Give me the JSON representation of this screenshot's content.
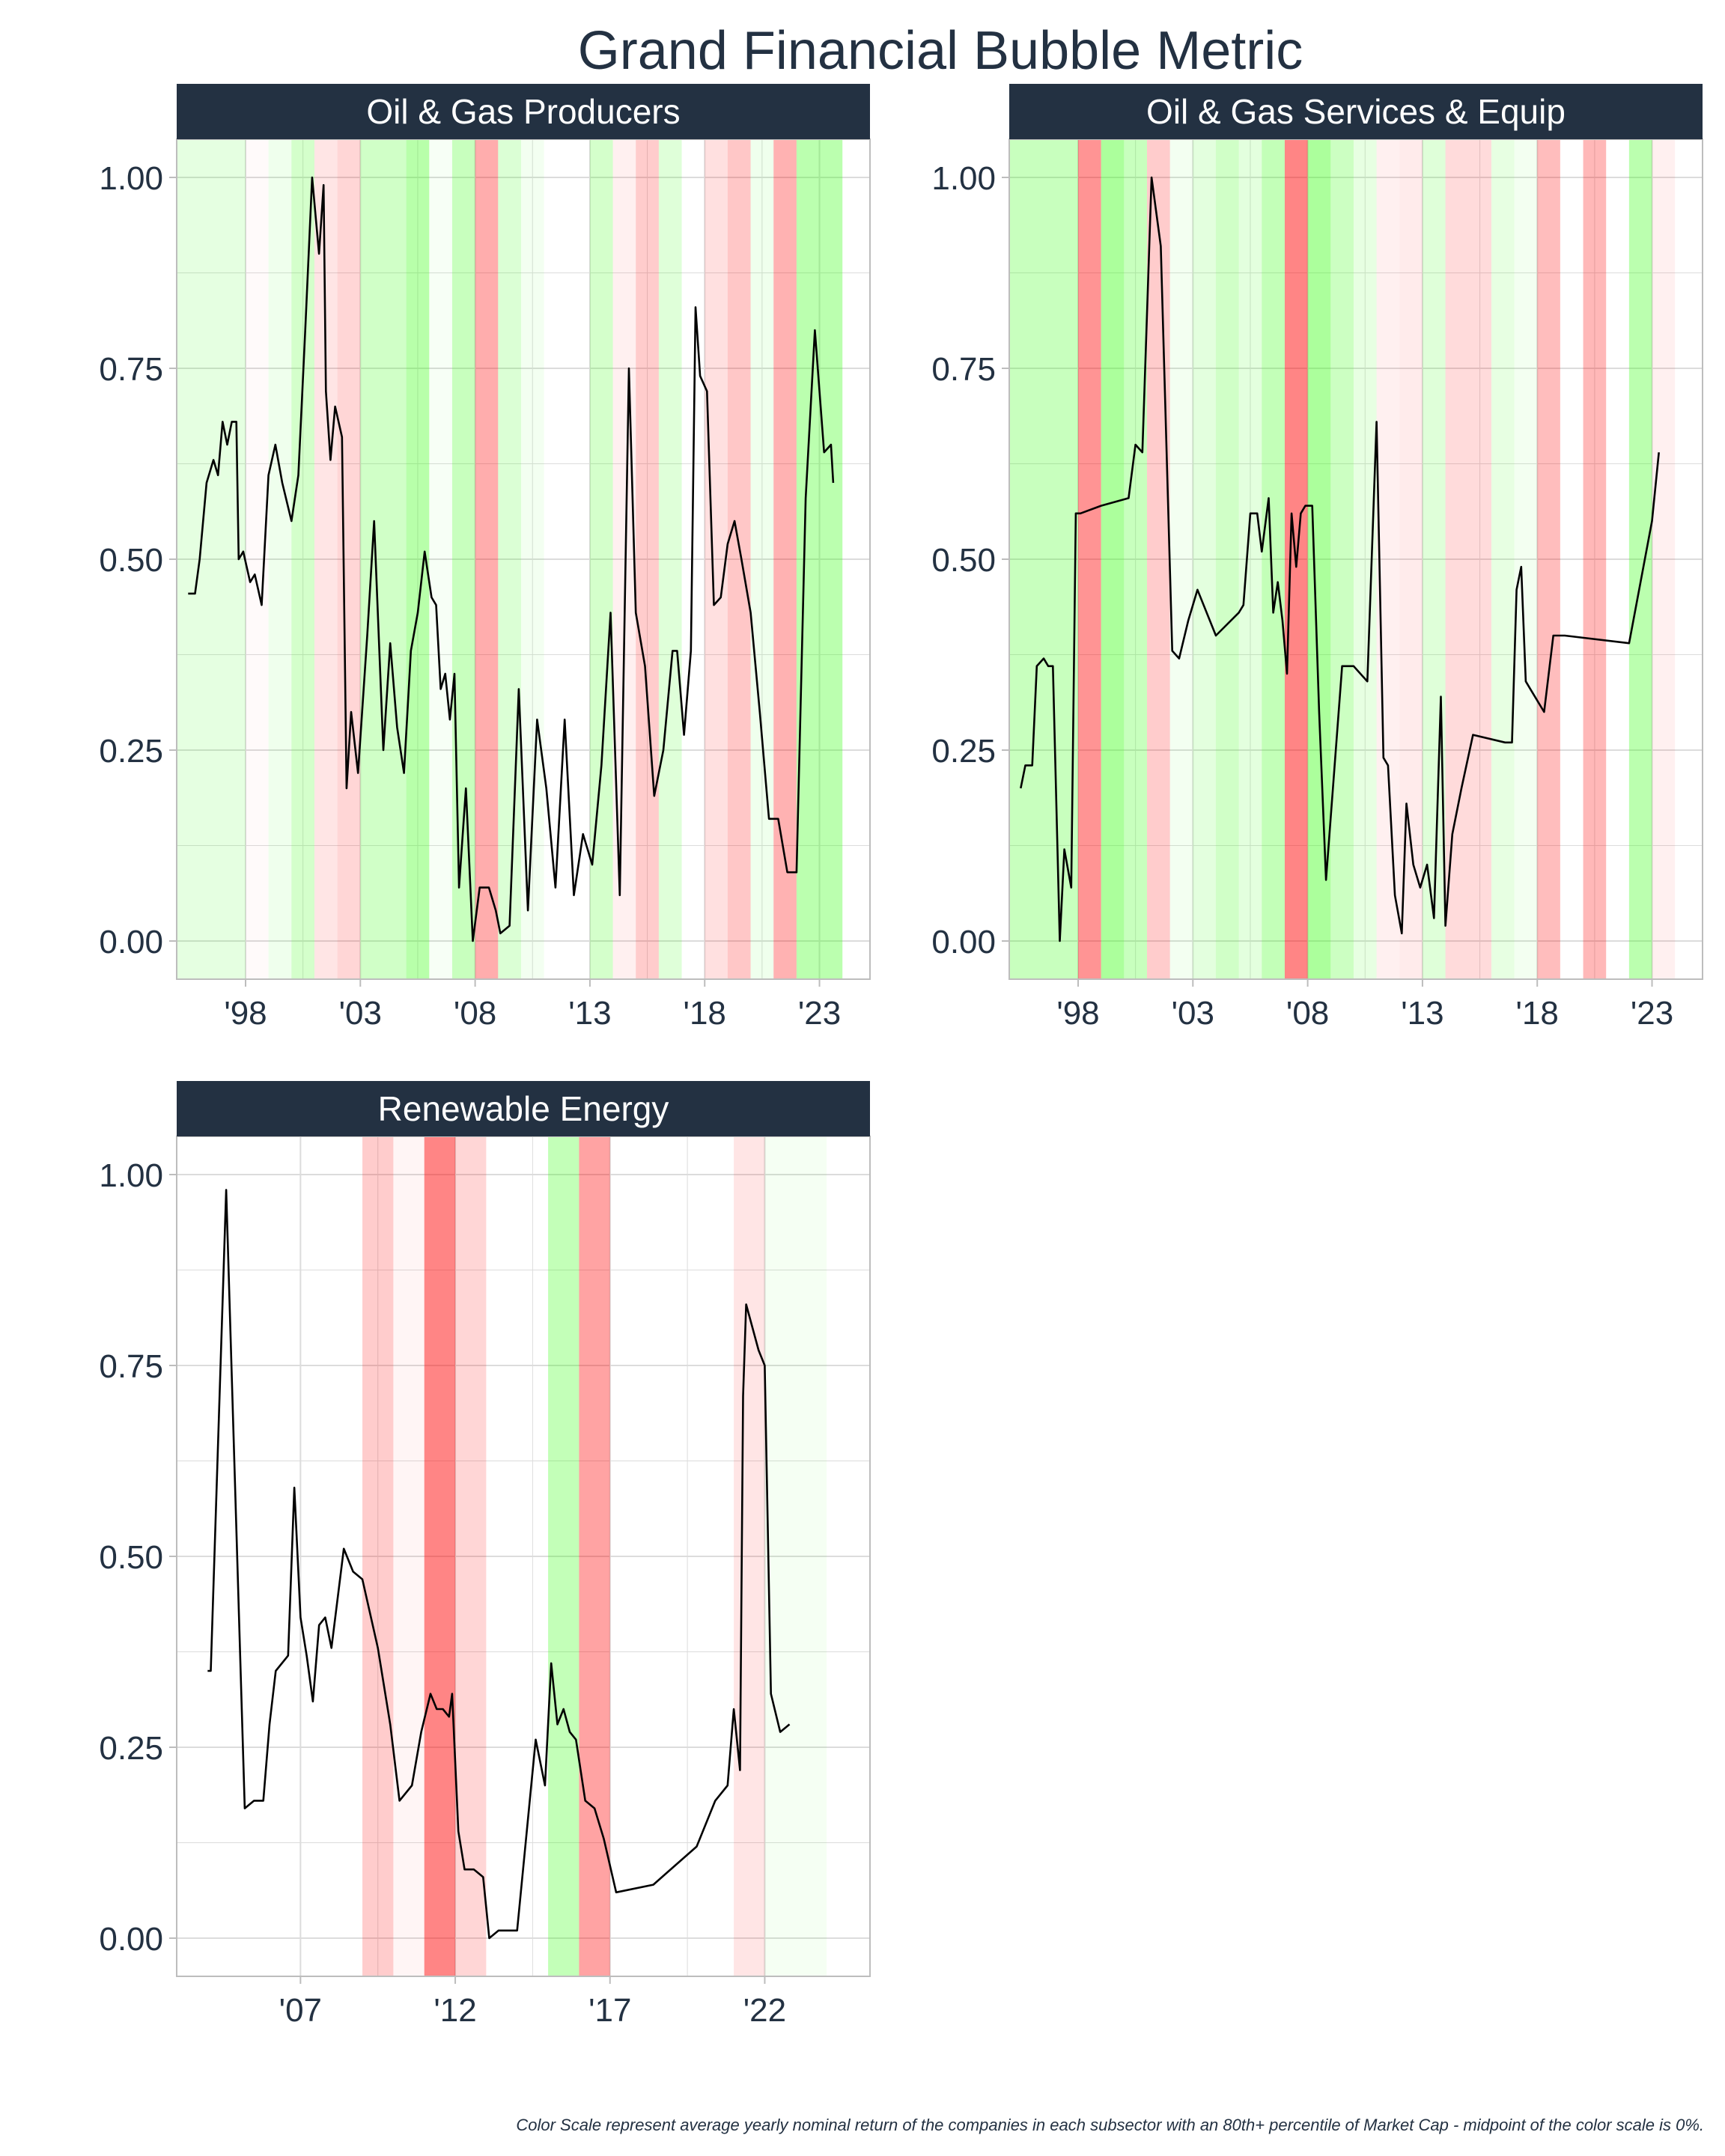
{
  "title": "Grand Financial Bubble Metric",
  "caption": "Color Scale represent average yearly nominal return of the companies in each subsector with an 80th+ percentile of Market Cap - midpoint of the color scale is 0%.",
  "colors": {
    "title_text": "#233142",
    "strip_bg": "#233142",
    "strip_text": "#ffffff",
    "line": "#000000",
    "grid": "#dcdcdc",
    "panel_border": "#bdbdbd",
    "positive_return": "#39ff14",
    "negative_return": "#ff0000"
  },
  "chart_data": [
    {
      "type": "line",
      "panel": "Oil & Gas Producers",
      "xlim": [
        1995,
        2025.2
      ],
      "ylim": [
        -0.05,
        1.05
      ],
      "x_ticks": [
        1998,
        2003,
        2008,
        2013,
        2018,
        2023
      ],
      "x_tick_labels": [
        "'98",
        "'03",
        "'08",
        "'13",
        "'18",
        "'23"
      ],
      "y_ticks": [
        0,
        0.25,
        0.5,
        0.75,
        1.0
      ],
      "y_tick_labels": [
        "0.00",
        "0.25",
        "0.50",
        "0.75",
        "1.00"
      ],
      "bands": [
        {
          "start": 1995.0,
          "end": 1998.0,
          "color": "#39ff14",
          "opacity": 0.13
        },
        {
          "start": 1998.0,
          "end": 1999.0,
          "color": "#ff0000",
          "opacity": 0.02
        },
        {
          "start": 1999.0,
          "end": 2000.0,
          "color": "#39ff14",
          "opacity": 0.08
        },
        {
          "start": 2000.0,
          "end": 2001.0,
          "color": "#39ff14",
          "opacity": 0.22
        },
        {
          "start": 2001.0,
          "end": 2002.0,
          "color": "#ff0000",
          "opacity": 0.1
        },
        {
          "start": 2002.0,
          "end": 2003.0,
          "color": "#ff0000",
          "opacity": 0.16
        },
        {
          "start": 2003.0,
          "end": 2005.0,
          "color": "#39ff14",
          "opacity": 0.24
        },
        {
          "start": 2005.0,
          "end": 2006.0,
          "color": "#39ff14",
          "opacity": 0.36
        },
        {
          "start": 2006.0,
          "end": 2007.0,
          "color": "#39ff14",
          "opacity": 0.04
        },
        {
          "start": 2007.0,
          "end": 2008.0,
          "color": "#39ff14",
          "opacity": 0.28
        },
        {
          "start": 2008.0,
          "end": 2009.0,
          "color": "#ff0000",
          "opacity": 0.32
        },
        {
          "start": 2009.0,
          "end": 2010.0,
          "color": "#39ff14",
          "opacity": 0.18
        },
        {
          "start": 2010.0,
          "end": 2011.0,
          "color": "#39ff14",
          "opacity": 0.06
        },
        {
          "start": 2013.0,
          "end": 2014.0,
          "color": "#39ff14",
          "opacity": 0.22
        },
        {
          "start": 2014.0,
          "end": 2015.0,
          "color": "#ff0000",
          "opacity": 0.06
        },
        {
          "start": 2015.0,
          "end": 2016.0,
          "color": "#ff0000",
          "opacity": 0.2
        },
        {
          "start": 2016.0,
          "end": 2017.0,
          "color": "#39ff14",
          "opacity": 0.16
        },
        {
          "start": 2018.0,
          "end": 2019.0,
          "color": "#ff0000",
          "opacity": 0.12
        },
        {
          "start": 2019.0,
          "end": 2020.0,
          "color": "#ff0000",
          "opacity": 0.22
        },
        {
          "start": 2020.0,
          "end": 2021.0,
          "color": "#39ff14",
          "opacity": 0.08
        },
        {
          "start": 2021.0,
          "end": 2022.0,
          "color": "#ff0000",
          "opacity": 0.3
        },
        {
          "start": 2022.0,
          "end": 2024.0,
          "color": "#39ff14",
          "opacity": 0.34
        }
      ],
      "x": [
        1995.5,
        1995.8,
        1996.0,
        1996.3,
        1996.6,
        1996.8,
        1997.0,
        1997.2,
        1997.4,
        1997.6,
        1997.7,
        1997.9,
        1998.2,
        1998.4,
        1998.7,
        1999.0,
        1999.3,
        1999.6,
        2000.0,
        2000.3,
        2000.6,
        2000.9,
        2001.2,
        2001.4,
        2001.5,
        2001.7,
        2001.9,
        2002.2,
        2002.4,
        2002.6,
        2002.9,
        2003.3,
        2003.6,
        2004.0,
        2004.3,
        2004.6,
        2004.9,
        2005.2,
        2005.5,
        2005.8,
        2006.1,
        2006.3,
        2006.5,
        2006.7,
        2006.9,
        2007.1,
        2007.3,
        2007.6,
        2007.9,
        2008.2,
        2008.6,
        2008.9,
        2009.1,
        2009.5,
        2009.9,
        2010.3,
        2010.7,
        2011.1,
        2011.5,
        2011.9,
        2012.3,
        2012.7,
        2013.1,
        2013.5,
        2013.9,
        2014.3,
        2014.7,
        2015.0,
        2015.4,
        2015.8,
        2016.2,
        2016.6,
        2016.8,
        2017.1,
        2017.4,
        2017.6,
        2017.8,
        2018.1,
        2018.4,
        2018.7,
        2019.0,
        2019.3,
        2019.6,
        2020.0,
        2020.4,
        2020.8,
        2021.2,
        2021.6,
        2022.0,
        2022.4,
        2022.8,
        2023.2,
        2023.5,
        2023.6
      ],
      "values": [
        0.455,
        0.455,
        0.5,
        0.6,
        0.63,
        0.61,
        0.68,
        0.65,
        0.68,
        0.68,
        0.5,
        0.51,
        0.47,
        0.48,
        0.44,
        0.61,
        0.65,
        0.6,
        0.55,
        0.61,
        0.8,
        1.0,
        0.9,
        0.99,
        0.72,
        0.63,
        0.7,
        0.66,
        0.2,
        0.3,
        0.22,
        0.4,
        0.55,
        0.25,
        0.39,
        0.28,
        0.22,
        0.38,
        0.43,
        0.51,
        0.45,
        0.44,
        0.33,
        0.35,
        0.29,
        0.35,
        0.07,
        0.2,
        0.0,
        0.07,
        0.07,
        0.04,
        0.01,
        0.02,
        0.33,
        0.04,
        0.29,
        0.2,
        0.07,
        0.29,
        0.06,
        0.14,
        0.1,
        0.23,
        0.43,
        0.06,
        0.75,
        0.43,
        0.36,
        0.19,
        0.25,
        0.38,
        0.38,
        0.27,
        0.38,
        0.83,
        0.74,
        0.72,
        0.44,
        0.45,
        0.52,
        0.55,
        0.5,
        0.43,
        0.3,
        0.16,
        0.16,
        0.09,
        0.09,
        0.58,
        0.8,
        0.64,
        0.65,
        0.6
      ]
    },
    {
      "type": "line",
      "panel": "Oil & Gas Services & Equip",
      "xlim": [
        1995,
        2025.2
      ],
      "ylim": [
        -0.05,
        1.05
      ],
      "x_ticks": [
        1998,
        2003,
        2008,
        2013,
        2018,
        2023
      ],
      "x_tick_labels": [
        "'98",
        "'03",
        "'08",
        "'13",
        "'18",
        "'23"
      ],
      "y_ticks": [
        0,
        0.25,
        0.5,
        0.75,
        1.0
      ],
      "y_tick_labels": [
        "0.00",
        "0.25",
        "0.50",
        "0.75",
        "1.00"
      ],
      "bands": [
        {
          "start": 1995.0,
          "end": 1998.0,
          "color": "#39ff14",
          "opacity": 0.28
        },
        {
          "start": 1998.0,
          "end": 1999.0,
          "color": "#ff0000",
          "opacity": 0.42
        },
        {
          "start": 1999.0,
          "end": 2000.0,
          "color": "#39ff14",
          "opacity": 0.42
        },
        {
          "start": 2000.0,
          "end": 2001.0,
          "color": "#39ff14",
          "opacity": 0.28
        },
        {
          "start": 2001.0,
          "end": 2002.0,
          "color": "#ff0000",
          "opacity": 0.2
        },
        {
          "start": 2002.0,
          "end": 2003.0,
          "color": "#39ff14",
          "opacity": 0.06
        },
        {
          "start": 2003.0,
          "end": 2004.0,
          "color": "#39ff14",
          "opacity": 0.14
        },
        {
          "start": 2004.0,
          "end": 2005.0,
          "color": "#39ff14",
          "opacity": 0.24
        },
        {
          "start": 2005.0,
          "end": 2006.0,
          "color": "#39ff14",
          "opacity": 0.14
        },
        {
          "start": 2006.0,
          "end": 2007.0,
          "color": "#39ff14",
          "opacity": 0.3
        },
        {
          "start": 2007.0,
          "end": 2008.0,
          "color": "#ff0000",
          "opacity": 0.48
        },
        {
          "start": 2008.0,
          "end": 2009.0,
          "color": "#39ff14",
          "opacity": 0.42
        },
        {
          "start": 2009.0,
          "end": 2010.0,
          "color": "#39ff14",
          "opacity": 0.26
        },
        {
          "start": 2010.0,
          "end": 2011.0,
          "color": "#39ff14",
          "opacity": 0.12
        },
        {
          "start": 2011.0,
          "end": 2012.0,
          "color": "#ff0000",
          "opacity": 0.06
        },
        {
          "start": 2012.0,
          "end": 2013.0,
          "color": "#ff0000",
          "opacity": 0.08
        },
        {
          "start": 2013.0,
          "end": 2014.0,
          "color": "#39ff14",
          "opacity": 0.16
        },
        {
          "start": 2014.0,
          "end": 2016.0,
          "color": "#ff0000",
          "opacity": 0.14
        },
        {
          "start": 2016.0,
          "end": 2017.0,
          "color": "#39ff14",
          "opacity": 0.12
        },
        {
          "start": 2017.0,
          "end": 2018.0,
          "color": "#39ff14",
          "opacity": 0.06
        },
        {
          "start": 2018.0,
          "end": 2019.0,
          "color": "#ff0000",
          "opacity": 0.26
        },
        {
          "start": 2020.0,
          "end": 2021.0,
          "color": "#ff0000",
          "opacity": 0.28
        },
        {
          "start": 2022.0,
          "end": 2023.0,
          "color": "#39ff14",
          "opacity": 0.34
        },
        {
          "start": 2023.0,
          "end": 2024.0,
          "color": "#ff0000",
          "opacity": 0.06
        }
      ],
      "x": [
        1995.5,
        1995.7,
        1996.0,
        1996.2,
        1996.5,
        1996.7,
        1996.9,
        1997.2,
        1997.4,
        1997.7,
        1997.9,
        1998.1,
        1999.0,
        2000.2,
        2000.5,
        2000.8,
        2001.2,
        2001.6,
        2002.1,
        2002.4,
        2002.8,
        2003.2,
        2004.0,
        2005.0,
        2005.2,
        2005.5,
        2005.8,
        2006.0,
        2006.3,
        2006.5,
        2006.7,
        2006.9,
        2007.1,
        2007.3,
        2007.5,
        2007.7,
        2007.9,
        2008.2,
        2008.5,
        2008.8,
        2009.5,
        2010.0,
        2010.6,
        2011.0,
        2011.3,
        2011.5,
        2011.8,
        2012.1,
        2012.3,
        2012.6,
        2012.9,
        2013.2,
        2013.5,
        2013.8,
        2014.0,
        2014.3,
        2014.7,
        2015.2,
        2016.6,
        2016.9,
        2017.1,
        2017.3,
        2017.5,
        2017.7,
        2018.3,
        2018.7,
        2019.2,
        2022.0,
        2023.0,
        2023.3
      ],
      "values": [
        0.2,
        0.23,
        0.23,
        0.36,
        0.37,
        0.36,
        0.36,
        0.0,
        0.12,
        0.07,
        0.56,
        0.56,
        0.57,
        0.58,
        0.65,
        0.64,
        1.0,
        0.91,
        0.38,
        0.37,
        0.42,
        0.46,
        0.4,
        0.43,
        0.44,
        0.56,
        0.56,
        0.51,
        0.58,
        0.43,
        0.47,
        0.42,
        0.35,
        0.56,
        0.49,
        0.56,
        0.57,
        0.57,
        0.3,
        0.08,
        0.36,
        0.36,
        0.34,
        0.68,
        0.24,
        0.23,
        0.06,
        0.01,
        0.18,
        0.1,
        0.07,
        0.1,
        0.03,
        0.32,
        0.02,
        0.14,
        0.2,
        0.27,
        0.26,
        0.26,
        0.46,
        0.49,
        0.34,
        0.33,
        0.3,
        0.4,
        0.4,
        0.39,
        0.55,
        0.64
      ]
    },
    {
      "type": "line",
      "panel": "Renewable Energy",
      "xlim": [
        2003,
        2025.4
      ],
      "ylim": [
        -0.05,
        1.05
      ],
      "x_ticks": [
        2007,
        2012,
        2017,
        2022
      ],
      "x_tick_labels": [
        "'07",
        "'12",
        "'17",
        "'22"
      ],
      "y_ticks": [
        0,
        0.25,
        0.5,
        0.75,
        1.0
      ],
      "y_tick_labels": [
        "0.00",
        "0.25",
        "0.50",
        "0.75",
        "1.00"
      ],
      "bands": [
        {
          "start": 2009.0,
          "end": 2010.0,
          "color": "#ff0000",
          "opacity": 0.2
        },
        {
          "start": 2010.0,
          "end": 2011.0,
          "color": "#ff0000",
          "opacity": 0.04
        },
        {
          "start": 2011.0,
          "end": 2012.0,
          "color": "#ff0000",
          "opacity": 0.48
        },
        {
          "start": 2012.0,
          "end": 2013.0,
          "color": "#ff0000",
          "opacity": 0.16
        },
        {
          "start": 2015.0,
          "end": 2016.0,
          "color": "#39ff14",
          "opacity": 0.3
        },
        {
          "start": 2016.0,
          "end": 2017.0,
          "color": "#ff0000",
          "opacity": 0.36
        },
        {
          "start": 2021.0,
          "end": 2022.0,
          "color": "#ff0000",
          "opacity": 0.1
        },
        {
          "start": 2022.0,
          "end": 2024.0,
          "color": "#39ff14",
          "opacity": 0.05
        }
      ],
      "x": [
        2004.0,
        2004.1,
        2004.6,
        2005.2,
        2005.5,
        2005.8,
        2006.0,
        2006.2,
        2006.6,
        2006.8,
        2007.0,
        2007.2,
        2007.4,
        2007.6,
        2007.8,
        2008.0,
        2008.4,
        2008.7,
        2009.0,
        2009.5,
        2009.9,
        2010.2,
        2010.6,
        2010.9,
        2011.2,
        2011.4,
        2011.6,
        2011.8,
        2011.9,
        2012.1,
        2012.3,
        2012.6,
        2012.9,
        2013.1,
        2013.4,
        2014.0,
        2014.6,
        2014.9,
        2015.1,
        2015.3,
        2015.5,
        2015.7,
        2015.9,
        2016.2,
        2016.5,
        2016.8,
        2017.2,
        2018.4,
        2019.8,
        2020.4,
        2020.8,
        2021.0,
        2021.2,
        2021.3,
        2021.4,
        2021.6,
        2021.8,
        2022.0,
        2022.2,
        2022.5,
        2022.8
      ],
      "values": [
        0.35,
        0.35,
        0.98,
        0.17,
        0.18,
        0.18,
        0.28,
        0.35,
        0.37,
        0.59,
        0.42,
        0.37,
        0.31,
        0.41,
        0.42,
        0.38,
        0.51,
        0.48,
        0.47,
        0.38,
        0.28,
        0.18,
        0.2,
        0.27,
        0.32,
        0.3,
        0.3,
        0.29,
        0.32,
        0.14,
        0.09,
        0.09,
        0.08,
        0.0,
        0.01,
        0.01,
        0.26,
        0.2,
        0.36,
        0.28,
        0.3,
        0.27,
        0.26,
        0.18,
        0.17,
        0.13,
        0.06,
        0.07,
        0.12,
        0.18,
        0.2,
        0.3,
        0.22,
        0.71,
        0.83,
        0.8,
        0.77,
        0.75,
        0.32,
        0.27,
        0.28
      ]
    }
  ]
}
